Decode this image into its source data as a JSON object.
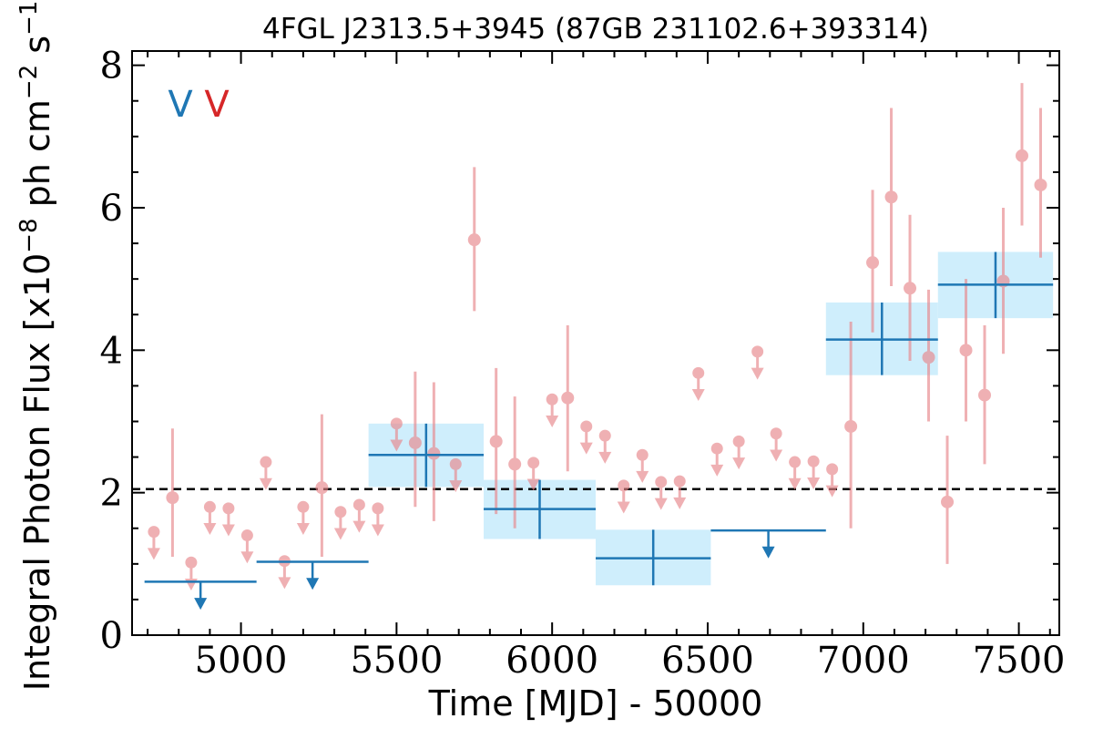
{
  "chart_data": {
    "type": "scatter",
    "title": "4FGL J2313.5+3945 (87GB 231102.6+393314)",
    "xlabel": "Time [MJD] - 50000",
    "ylabel": "Integral Photon Flux [x10",
    "ylabel_exp1": "−8",
    "ylabel_mid": " ph cm",
    "ylabel_exp2": "−2",
    "ylabel_mid2": " s",
    "ylabel_exp3": "−1",
    "ylabel_end": "]",
    "xlim": [
      4650,
      7630
    ],
    "ylim": [
      0,
      8.2
    ],
    "xticks": [
      5000,
      5500,
      6000,
      6500,
      7000,
      7500
    ],
    "xtick_labels": [
      "5000",
      "5500",
      "6000",
      "6500",
      "7000",
      "7500"
    ],
    "yticks": [
      0,
      2,
      4,
      6,
      8
    ],
    "ytick_labels": [
      "0",
      "2",
      "4",
      "6",
      "8"
    ],
    "average_flux": 2.05,
    "legend": {
      "placement": "top-left",
      "entries": [
        {
          "label": "V",
          "color": "#1f77b4"
        },
        {
          "label": "V",
          "color": "#d62728"
        }
      ]
    },
    "colors": {
      "short_bins": "#e8878b",
      "long_bins": "#1f77b4",
      "long_band": "#cfeefc",
      "average_line": "#000000"
    },
    "short_bin_detections": [
      {
        "x": 4780,
        "y": 1.93,
        "ylo": 1.1,
        "yhi": 2.9
      },
      {
        "x": 5260,
        "y": 2.07,
        "ylo": 1.1,
        "yhi": 3.1
      },
      {
        "x": 5560,
        "y": 2.7,
        "ylo": 1.8,
        "yhi": 3.7
      },
      {
        "x": 5620,
        "y": 2.55,
        "ylo": 1.6,
        "yhi": 3.55
      },
      {
        "x": 5750,
        "y": 5.55,
        "ylo": 4.55,
        "yhi": 6.57
      },
      {
        "x": 5820,
        "y": 2.72,
        "ylo": 1.7,
        "yhi": 3.75
      },
      {
        "x": 5880,
        "y": 2.4,
        "ylo": 1.5,
        "yhi": 3.35
      },
      {
        "x": 6050,
        "y": 3.33,
        "ylo": 2.3,
        "yhi": 4.35
      },
      {
        "x": 6960,
        "y": 2.93,
        "ylo": 1.5,
        "yhi": 4.4
      },
      {
        "x": 7030,
        "y": 5.23,
        "ylo": 4.25,
        "yhi": 6.25
      },
      {
        "x": 7090,
        "y": 6.15,
        "ylo": 4.9,
        "yhi": 7.4
      },
      {
        "x": 7150,
        "y": 4.87,
        "ylo": 3.85,
        "yhi": 5.9
      },
      {
        "x": 7210,
        "y": 3.9,
        "ylo": 3.0,
        "yhi": 4.85
      },
      {
        "x": 7270,
        "y": 1.87,
        "ylo": 1.0,
        "yhi": 2.8
      },
      {
        "x": 7330,
        "y": 4.0,
        "ylo": 3.0,
        "yhi": 5.0
      },
      {
        "x": 7390,
        "y": 3.37,
        "ylo": 2.4,
        "yhi": 4.35
      },
      {
        "x": 7450,
        "y": 4.97,
        "ylo": 3.95,
        "yhi": 6.0
      },
      {
        "x": 7510,
        "y": 6.73,
        "ylo": 5.75,
        "yhi": 7.75
      },
      {
        "x": 7570,
        "y": 6.32,
        "ylo": 5.3,
        "yhi": 7.4
      }
    ],
    "short_bin_upper_limits": [
      {
        "x": 4720,
        "y": 1.45
      },
      {
        "x": 4840,
        "y": 1.02
      },
      {
        "x": 4900,
        "y": 1.8
      },
      {
        "x": 4960,
        "y": 1.78
      },
      {
        "x": 5020,
        "y": 1.4
      },
      {
        "x": 5080,
        "y": 2.43
      },
      {
        "x": 5140,
        "y": 1.04
      },
      {
        "x": 5200,
        "y": 1.8
      },
      {
        "x": 5320,
        "y": 1.73
      },
      {
        "x": 5380,
        "y": 1.83
      },
      {
        "x": 5440,
        "y": 1.78
      },
      {
        "x": 5500,
        "y": 2.97
      },
      {
        "x": 5690,
        "y": 2.4
      },
      {
        "x": 5940,
        "y": 2.42
      },
      {
        "x": 6000,
        "y": 3.31
      },
      {
        "x": 6110,
        "y": 2.93
      },
      {
        "x": 6170,
        "y": 2.8
      },
      {
        "x": 6230,
        "y": 2.1
      },
      {
        "x": 6290,
        "y": 2.53
      },
      {
        "x": 6350,
        "y": 2.15
      },
      {
        "x": 6410,
        "y": 2.16
      },
      {
        "x": 6470,
        "y": 3.68
      },
      {
        "x": 6530,
        "y": 2.62
      },
      {
        "x": 6600,
        "y": 2.72
      },
      {
        "x": 6660,
        "y": 3.98
      },
      {
        "x": 6720,
        "y": 2.83
      },
      {
        "x": 6780,
        "y": 2.43
      },
      {
        "x": 6840,
        "y": 2.44
      },
      {
        "x": 6900,
        "y": 2.33
      }
    ],
    "long_bin_detections": [
      {
        "x0": 5410,
        "x1": 5780,
        "y": 2.53,
        "ylo": 2.08,
        "yhi": 2.97
      },
      {
        "x0": 5780,
        "x1": 6140,
        "y": 1.77,
        "ylo": 1.35,
        "yhi": 2.18
      },
      {
        "x0": 6140,
        "x1": 6510,
        "y": 1.08,
        "ylo": 0.7,
        "yhi": 1.48
      },
      {
        "x0": 6880,
        "x1": 7240,
        "y": 4.15,
        "ylo": 3.65,
        "yhi": 4.67
      },
      {
        "x0": 7240,
        "x1": 7610,
        "y": 4.92,
        "ylo": 4.45,
        "yhi": 5.38
      }
    ],
    "long_bin_upper_limits": [
      {
        "x0": 4690,
        "x1": 5050,
        "y": 0.75
      },
      {
        "x0": 5050,
        "x1": 5410,
        "y": 1.03
      },
      {
        "x0": 6510,
        "x1": 6880,
        "y": 1.47
      }
    ]
  }
}
